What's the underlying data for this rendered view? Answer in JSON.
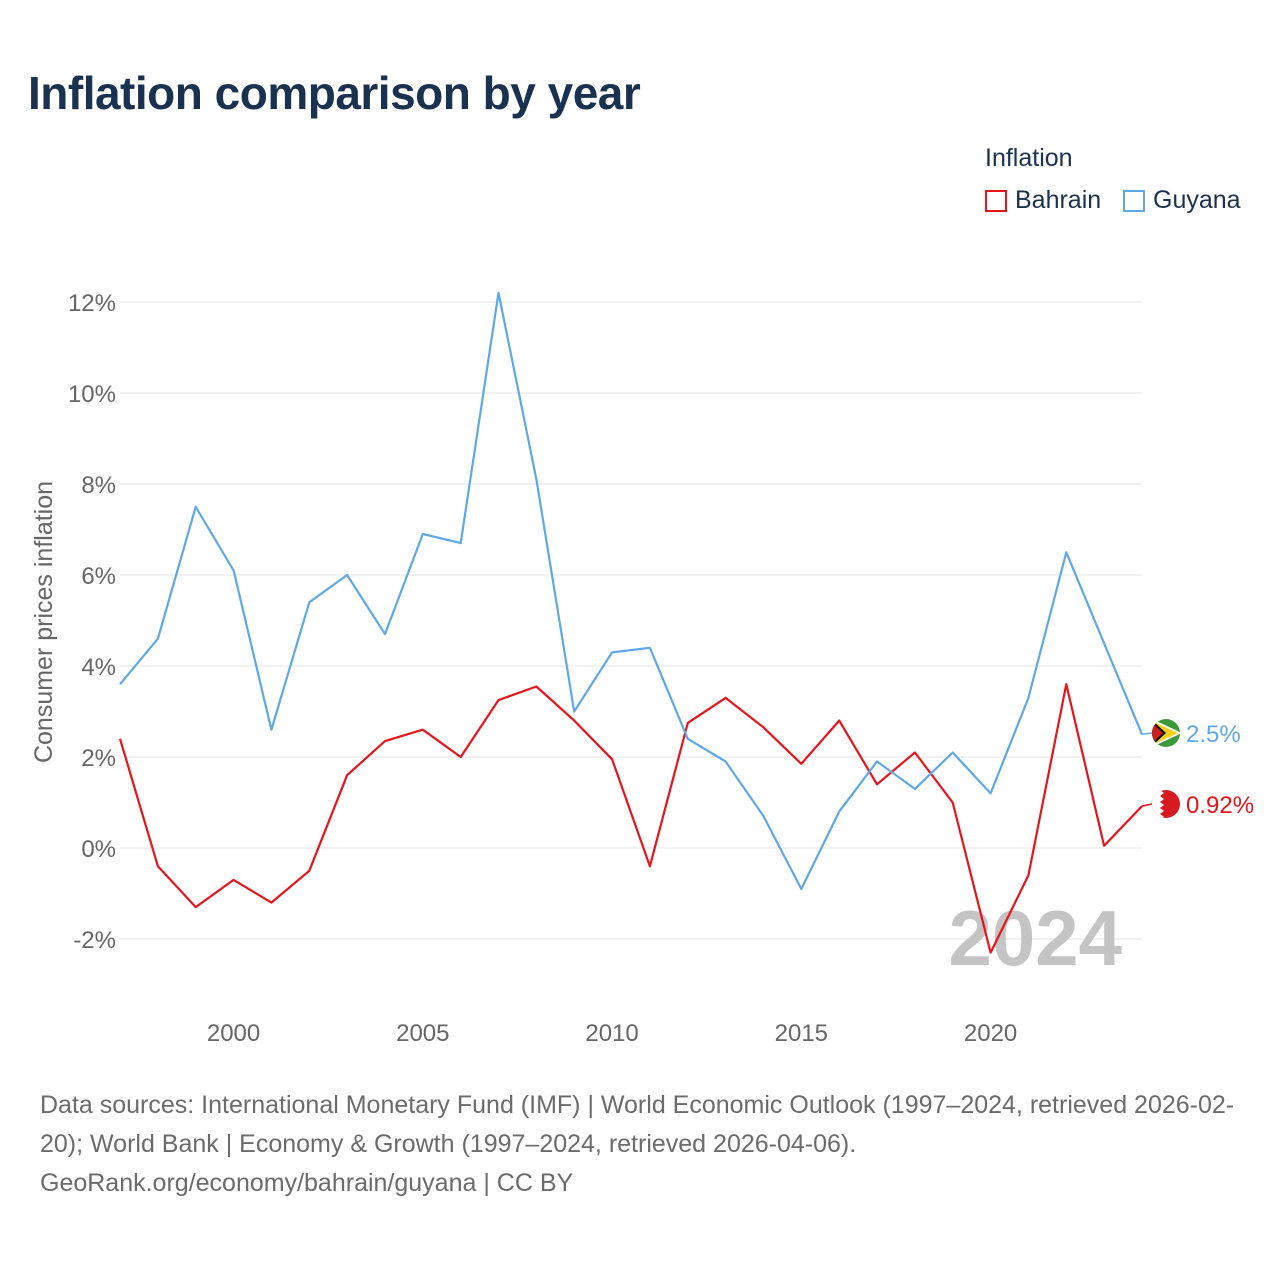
{
  "title": "Inflation comparison by year",
  "legend": {
    "title": "Inflation",
    "items": [
      {
        "label": "Bahrain",
        "color": "#e8141b"
      },
      {
        "label": "Guyana",
        "color": "#5fa8e8"
      }
    ]
  },
  "footer": {
    "line1": "Data sources: International Monetary Fund (IMF) | World Economic Outlook (1997–2024, retrieved 2026-02-20); World Bank | Economy & Growth (1997–2024, retrieved 2026-04-06).",
    "line2": "GeoRank.org/economy/bahrain/guyana | CC BY"
  },
  "chart_data": {
    "type": "line",
    "title": "Inflation comparison by year",
    "xlabel": "",
    "ylabel": "Consumer prices inflation",
    "watermark": "2024",
    "xlim": [
      1997,
      2024
    ],
    "ylim": [
      -3,
      12.5
    ],
    "x_ticks": [
      2000,
      2005,
      2010,
      2015,
      2020
    ],
    "x_tick_labels": [
      "2000",
      "2005",
      "2010",
      "2015",
      "2020"
    ],
    "y_ticks": [
      -2,
      0,
      2,
      4,
      6,
      8,
      10,
      12
    ],
    "y_tick_labels": [
      "-2%",
      "0%",
      "2%",
      "4%",
      "6%",
      "8%",
      "10%",
      "12%"
    ],
    "grid": true,
    "x": [
      1997,
      1998,
      1999,
      2000,
      2001,
      2002,
      2003,
      2004,
      2005,
      2006,
      2007,
      2008,
      2009,
      2010,
      2011,
      2012,
      2013,
      2014,
      2015,
      2016,
      2017,
      2018,
      2019,
      2020,
      2021,
      2022,
      2023,
      2024
    ],
    "series": [
      {
        "name": "Bahrain",
        "color": "#e8141b",
        "end_label": "0.92%",
        "values": [
          2.4,
          -0.4,
          -1.3,
          -0.7,
          -1.2,
          -0.5,
          1.6,
          2.35,
          2.6,
          2.0,
          3.25,
          3.55,
          2.8,
          1.95,
          -0.4,
          2.75,
          3.3,
          2.65,
          1.85,
          2.8,
          1.4,
          2.1,
          1.0,
          -2.3,
          -0.6,
          3.6,
          0.05,
          0.92
        ]
      },
      {
        "name": "Guyana",
        "color": "#5fa8e8",
        "end_label": "2.5%",
        "values": [
          3.6,
          4.6,
          7.5,
          6.1,
          2.6,
          5.4,
          6.0,
          4.7,
          6.9,
          6.7,
          12.2,
          8.1,
          3.0,
          4.3,
          4.4,
          2.4,
          1.9,
          0.7,
          -0.9,
          0.8,
          1.9,
          1.3,
          2.1,
          1.2,
          3.3,
          6.5,
          4.5,
          2.5
        ]
      }
    ]
  }
}
